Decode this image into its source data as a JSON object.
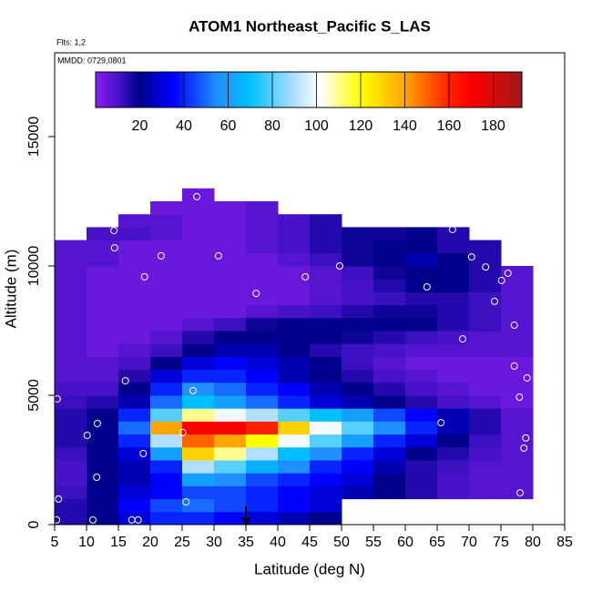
{
  "chart_data": {
    "type": "heatmap",
    "title": "ATOM1 Northeast_Pacific S_LAS",
    "subtitle": "Flts: 1,2",
    "annotation": "MMDD: 0729,0801",
    "x_label": "Latitude (deg N)",
    "y_label": "Altitude (m)",
    "xlim": [
      5,
      85
    ],
    "ylim": [
      0,
      18240
    ],
    "xticks": [
      5,
      10,
      15,
      20,
      25,
      30,
      35,
      40,
      45,
      50,
      55,
      60,
      65,
      70,
      75,
      80,
      85
    ],
    "yticks": [
      0,
      5000,
      10000,
      15000
    ],
    "clim": [
      0,
      193
    ],
    "cticks": [
      20,
      40,
      60,
      80,
      100,
      120,
      140,
      160,
      180
    ],
    "colorscale": [
      [
        0,
        "#8a1ef0"
      ],
      [
        12,
        "#3a10c0"
      ],
      [
        20,
        "#00008b"
      ],
      [
        35,
        "#0000ff"
      ],
      [
        55,
        "#1e90ff"
      ],
      [
        70,
        "#00bfff"
      ],
      [
        90,
        "#b0e0ff"
      ],
      [
        102,
        "#ffffff"
      ],
      [
        120,
        "#ffff00"
      ],
      [
        140,
        "#ffa500"
      ],
      [
        160,
        "#ff2000"
      ],
      [
        170,
        "#ff0000"
      ],
      [
        193,
        "#a01818"
      ]
    ],
    "x_bins": [
      5,
      10,
      15,
      20,
      25,
      30,
      35,
      40,
      45,
      50,
      55,
      60,
      65,
      70,
      75,
      80
    ],
    "y_bins": [
      0,
      500,
      1000,
      1500,
      2000,
      2500,
      3000,
      3500,
      4000,
      4500,
      5000,
      5500,
      6000,
      6500,
      7000,
      7500,
      8000,
      8500,
      9000,
      9500,
      10000,
      10500,
      11000,
      11500,
      12000,
      12500,
      13000
    ],
    "z": [
      [
        15,
        20,
        30,
        40,
        40,
        35,
        30,
        25,
        20,
        null,
        null,
        null,
        null,
        null,
        null
      ],
      [
        15,
        20,
        35,
        45,
        50,
        45,
        40,
        35,
        30,
        null,
        null,
        null,
        null,
        null,
        null
      ],
      [
        12,
        20,
        30,
        35,
        45,
        45,
        40,
        35,
        30,
        25,
        20,
        15,
        10,
        8,
        8
      ],
      [
        10,
        20,
        25,
        35,
        60,
        55,
        45,
        40,
        35,
        30,
        20,
        15,
        10,
        8,
        8
      ],
      [
        10,
        20,
        25,
        40,
        90,
        80,
        65,
        55,
        40,
        35,
        25,
        15,
        12,
        8,
        8
      ],
      [
        12,
        20,
        30,
        60,
        130,
        110,
        90,
        70,
        55,
        40,
        30,
        20,
        15,
        10,
        8
      ],
      [
        15,
        20,
        40,
        90,
        150,
        140,
        120,
        100,
        80,
        60,
        40,
        30,
        20,
        12,
        8
      ],
      [
        15,
        20,
        50,
        140,
        170,
        170,
        160,
        130,
        100,
        80,
        55,
        40,
        25,
        15,
        8
      ],
      [
        15,
        20,
        40,
        80,
        110,
        100,
        90,
        80,
        70,
        60,
        45,
        35,
        25,
        15,
        8
      ],
      [
        12,
        15,
        25,
        50,
        70,
        60,
        50,
        40,
        30,
        25,
        20,
        15,
        10,
        8,
        5
      ],
      [
        10,
        10,
        20,
        40,
        55,
        50,
        40,
        35,
        25,
        20,
        15,
        10,
        8,
        5,
        5
      ],
      [
        8,
        8,
        15,
        30,
        40,
        40,
        35,
        25,
        20,
        15,
        10,
        8,
        5,
        5,
        5
      ],
      [
        8,
        8,
        10,
        20,
        30,
        35,
        30,
        25,
        20,
        12,
        8,
        5,
        5,
        5,
        5
      ],
      [
        8,
        5,
        8,
        12,
        20,
        25,
        25,
        20,
        15,
        12,
        10,
        8,
        8,
        8,
        8
      ],
      [
        8,
        5,
        5,
        8,
        15,
        20,
        20,
        20,
        20,
        18,
        15,
        12,
        10,
        8,
        8
      ],
      [
        8,
        5,
        5,
        5,
        8,
        12,
        18,
        20,
        20,
        20,
        20,
        20,
        15,
        12,
        8
      ],
      [
        8,
        5,
        5,
        5,
        5,
        5,
        8,
        10,
        12,
        15,
        18,
        18,
        15,
        12,
        8
      ],
      [
        8,
        5,
        5,
        5,
        5,
        5,
        5,
        5,
        8,
        10,
        12,
        15,
        15,
        12,
        8
      ],
      [
        8,
        5,
        5,
        5,
        5,
        5,
        5,
        5,
        8,
        10,
        15,
        20,
        20,
        15,
        8
      ],
      [
        8,
        5,
        5,
        5,
        5,
        5,
        5,
        5,
        8,
        12,
        18,
        20,
        20,
        15,
        8
      ],
      [
        8,
        8,
        5,
        5,
        5,
        5,
        5,
        8,
        12,
        18,
        20,
        25,
        20,
        15,
        null
      ],
      [
        8,
        8,
        5,
        5,
        5,
        5,
        8,
        10,
        15,
        18,
        20,
        20,
        15,
        15,
        null
      ],
      [
        null,
        10,
        10,
        8,
        5,
        5,
        8,
        10,
        15,
        18,
        18,
        20,
        15,
        null,
        null
      ],
      [
        null,
        null,
        8,
        8,
        5,
        5,
        8,
        10,
        15,
        null,
        null,
        null,
        null,
        null,
        null
      ],
      [
        null,
        null,
        null,
        5,
        5,
        5,
        8,
        null,
        null,
        null,
        null,
        null,
        null,
        null,
        null
      ],
      [
        null,
        null,
        null,
        null,
        5,
        null,
        null,
        null,
        null,
        null,
        null,
        null,
        null,
        null,
        null
      ]
    ],
    "points": {
      "x": [
        5.4,
        5.6,
        5.3,
        8,
        11,
        11.7,
        10.1,
        11.6,
        14.3,
        14.4,
        17.1,
        18.1,
        16.1,
        18.9,
        19.1,
        21.7,
        27.3,
        26.7,
        25.1,
        25.6,
        30.7,
        36.6,
        44.3,
        49.7,
        63.4,
        65.6,
        67.4,
        69,
        70.4,
        72.6,
        74,
        75.1,
        76.1,
        77.1,
        77.1,
        77.9,
        79.1,
        78.9,
        78.6,
        78
      ],
      "y": [
        4860,
        990,
        180,
        11370,
        180,
        3910,
        3450,
        1830,
        11370,
        10700,
        180,
        180,
        5560,
        2750,
        9580,
        10390,
        12680,
        5180,
        3560,
        880,
        10390,
        8940,
        9580,
        10000,
        9190,
        3940,
        11410,
        7180,
        10350,
        9960,
        8630,
        9440,
        9720,
        7710,
        6130,
        4930,
        5670,
        3350,
        2960,
        1230
      ],
      "color": "#ffffff"
    },
    "marker_x": 35
  }
}
